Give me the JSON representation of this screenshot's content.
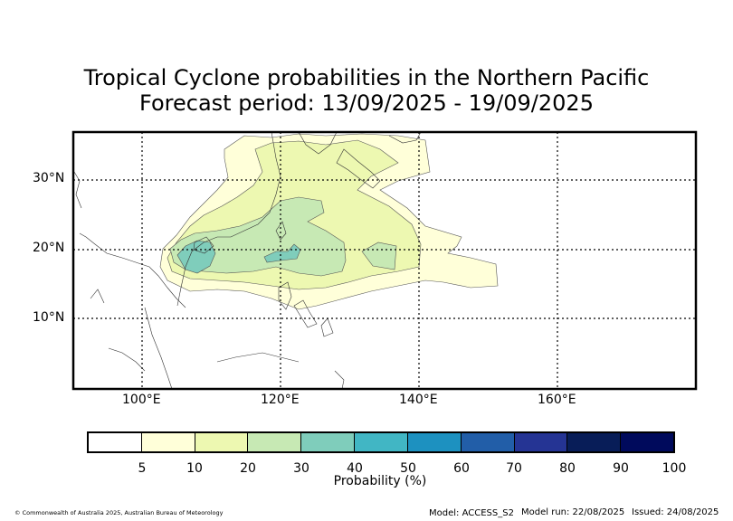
{
  "title": {
    "line1": "Tropical Cyclone probabilities in the Northern Pacific",
    "line2": "Forecast period: 13/09/2025 - 19/09/2025"
  },
  "map": {
    "lat_labels": [
      "30°N",
      "20°N",
      "10°N"
    ],
    "lon_labels": [
      "100°E",
      "120°E",
      "140°E",
      "160°E"
    ],
    "extent": {
      "lon": [
        90,
        180
      ],
      "lat": [
        0,
        37
      ]
    }
  },
  "legend": {
    "ticks": [
      "5",
      "10",
      "20",
      "30",
      "40",
      "50",
      "60",
      "70",
      "80",
      "90",
      "100"
    ],
    "label": "Probability (%)",
    "colors": [
      "#ffffff",
      "#ffffd9",
      "#edf8b1",
      "#c7e9b4",
      "#7fcdbb",
      "#41b6c4",
      "#1d91c0",
      "#225ea8",
      "#253494",
      "#081d58",
      "#000a5c"
    ]
  },
  "footer": {
    "copyright": "© Commonwealth of Australia 2025, Australian Bureau of Meteorology",
    "model": "Model: ACCESS_S2",
    "run": "Model run: 22/08/2025",
    "issued": "Issued: 24/08/2025"
  }
}
